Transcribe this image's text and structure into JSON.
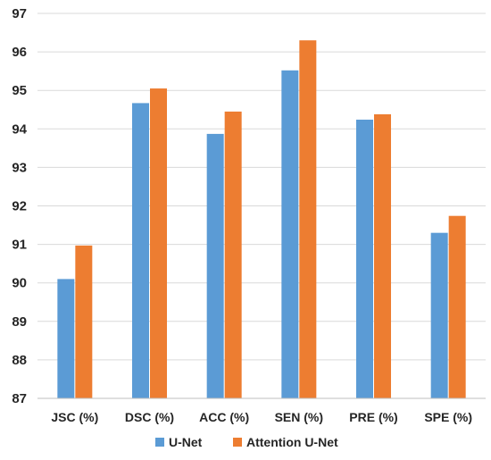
{
  "chart_data": {
    "type": "bar",
    "title": "",
    "xlabel": "",
    "ylabel": "",
    "categories": [
      "JSC (%)",
      "DSC (%)",
      "ACC (%)",
      "SEN (%)",
      "PRE (%)",
      "SPE (%)"
    ],
    "series": [
      {
        "name": "U-Net",
        "color": "#5b9bd5",
        "values": [
          90.1,
          94.67,
          93.87,
          95.52,
          94.24,
          91.3
        ]
      },
      {
        "name": "Attention U-Net",
        "color": "#ed7d31",
        "values": [
          90.97,
          95.05,
          94.45,
          96.3,
          94.38,
          91.74
        ]
      }
    ],
    "ylim": [
      87,
      97
    ],
    "yticks": [
      87,
      88,
      89,
      90,
      91,
      92,
      93,
      94,
      95,
      96,
      97
    ],
    "grid": true,
    "legend_position": "bottom"
  }
}
